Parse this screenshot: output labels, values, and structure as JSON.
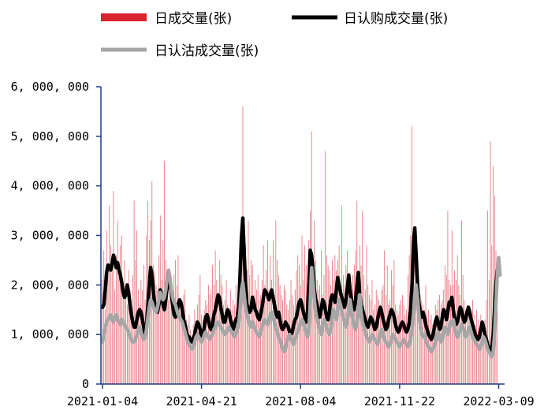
{
  "chart_data": {
    "type": "bar+line",
    "title": "",
    "xlabel": "",
    "ylabel": "",
    "ylim": [
      0,
      6000000
    ],
    "grid": false,
    "legend_placement": "top",
    "ytick_labels": [
      "0",
      "1, 000, 000",
      "2, 000, 000",
      "3, 000, 000",
      "4, 000, 000",
      "5, 000, 000",
      "6, 000, 000"
    ],
    "ytick_values": [
      0,
      1000000,
      2000000,
      3000000,
      4000000,
      5000000,
      6000000
    ],
    "xtick_labels": [
      "2021-01-04",
      "2021-04-21",
      "2021-08-04",
      "2021-11-22",
      "2022-03-09"
    ],
    "xtick_index": [
      0,
      72,
      144,
      216,
      288
    ],
    "x_start": "2021-01-04",
    "x_end": "2022-03-09",
    "num_days": 291,
    "bar_series": {
      "name": "日成交量(张)",
      "color": "#d9232e",
      "values": [
        2100000,
        2700000,
        1500000,
        3100000,
        2300000,
        3600000,
        2800000,
        2400000,
        3900000,
        1900000,
        2600000,
        3300000,
        2200000,
        2800000,
        3000000,
        1800000,
        2500000,
        2000000,
        1600000,
        2300000,
        1900000,
        1700000,
        2200000,
        3700000,
        2500000,
        3100000,
        1900000,
        1600000,
        2100000,
        1900000,
        2400000,
        1700000,
        3000000,
        3700000,
        2900000,
        3300000,
        4100000,
        2400000,
        2300000,
        2000000,
        1900000,
        2600000,
        3400000,
        2100000,
        2900000,
        4500000,
        2500000,
        1800000,
        1700000,
        2100000,
        2000000,
        1600000,
        2200000,
        2500000,
        2000000,
        2600000,
        1700000,
        1600000,
        1500000,
        1800000,
        1900000,
        1300000,
        1200000,
        1400000,
        1100000,
        1000000,
        1200000,
        1500000,
        1300000,
        1600000,
        1800000,
        2200000,
        1400000,
        1300000,
        1500000,
        1700000,
        1600000,
        2000000,
        1800000,
        1900000,
        2400000,
        2000000,
        2700000,
        2100000,
        1800000,
        2500000,
        2200000,
        2000000,
        1600000,
        1700000,
        2100000,
        1600000,
        1500000,
        1900000,
        1500000,
        1700000,
        1600000,
        2000000,
        1500000,
        1400000,
        2900000,
        2200000,
        5600000,
        2600000,
        2800000,
        2300000,
        3300000,
        2200000,
        2500000,
        2400000,
        1800000,
        2100000,
        1900000,
        2200000,
        1700000,
        1800000,
        2100000,
        2800000,
        2000000,
        2300000,
        2900000,
        1900000,
        2600000,
        2100000,
        2900000,
        1800000,
        3300000,
        2500000,
        2200000,
        2000000,
        1800000,
        1700000,
        2000000,
        1900000,
        1600000,
        1500000,
        1700000,
        2100000,
        1800000,
        1600000,
        1900000,
        2300000,
        2600000,
        2400000,
        2000000,
        3000000,
        2100000,
        2800000,
        2400000,
        1700000,
        2900000,
        3500000,
        5100000,
        2300000,
        3300000,
        2500000,
        2100000,
        1900000,
        2000000,
        2700000,
        1800000,
        2200000,
        4700000,
        2600000,
        2400000,
        2300000,
        2000000,
        2500000,
        2100000,
        2600000,
        2300000,
        2500000,
        2800000,
        1900000,
        3600000,
        2200000,
        2000000,
        2400000,
        2700000,
        1900000,
        2000000,
        1900000,
        2200000,
        2400000,
        2700000,
        3700000,
        2100000,
        2800000,
        2400000,
        3500000,
        2200000,
        1900000,
        2800000,
        2000000,
        1800000,
        1700000,
        2100000,
        1500000,
        1600000,
        1900000,
        1800000,
        1700000,
        1600000,
        1900000,
        2000000,
        2700000,
        1800000,
        2400000,
        1600000,
        1700000,
        2300000,
        2000000,
        2500000,
        1600000,
        1500000,
        1400000,
        1600000,
        1700000,
        1800000,
        1600000,
        1400000,
        1500000,
        2200000,
        2600000,
        3000000,
        5200000,
        3100000,
        2800000,
        2000000,
        1900000,
        2100000,
        1800000,
        1700000,
        1600000,
        1500000,
        2000000,
        1400000,
        1500000,
        1300000,
        1400000,
        1200000,
        1300000,
        1600000,
        1500000,
        1700000,
        1800000,
        1600000,
        1700000,
        1900000,
        2400000,
        2200000,
        3500000,
        2100000,
        2000000,
        3100000,
        2000000,
        2300000,
        2100000,
        2600000,
        2000000,
        1800000,
        3300000,
        2200000,
        1700000,
        1500000,
        1600000,
        1400000,
        1500000,
        1300000,
        1700000,
        1400000,
        1200000,
        1500000,
        1300000,
        1100000,
        1400000,
        1000000,
        1200000,
        1300000,
        1700000,
        3500000,
        2100000,
        4900000,
        2800000,
        4400000,
        3800000,
        2700000,
        2000000
      ]
    },
    "line_series": [
      {
        "name": "日认购成交量(张)",
        "color": "#000000",
        "values": [
          1550000,
          1600000,
          1900000,
          2250000,
          2400000,
          2350000,
          2300000,
          2450000,
          2600000,
          2500000,
          2350000,
          2450000,
          2300000,
          2200000,
          2050000,
          1850000,
          1750000,
          1800000,
          2000000,
          1850000,
          1600000,
          1400000,
          1250000,
          1150000,
          1150000,
          1300000,
          1450000,
          1500000,
          1450000,
          1300000,
          1150000,
          1000000,
          1150000,
          1600000,
          2000000,
          2350000,
          2200000,
          1850000,
          1600000,
          1500000,
          1450000,
          1600000,
          1900000,
          1800000,
          1600000,
          1500000,
          1700000,
          1950000,
          2100000,
          2050000,
          1850000,
          1600000,
          1400000,
          1350000,
          1450000,
          1600000,
          1700000,
          1650000,
          1500000,
          1300000,
          1200000,
          1050000,
          950000,
          950000,
          900000,
          850000,
          900000,
          1000000,
          1150000,
          1250000,
          1200000,
          1100000,
          950000,
          1000000,
          1150000,
          1350000,
          1400000,
          1300000,
          1150000,
          1100000,
          1200000,
          1400000,
          1500000,
          1650000,
          1800000,
          1750000,
          1550000,
          1400000,
          1250000,
          1250000,
          1400000,
          1500000,
          1450000,
          1300000,
          1200000,
          1100000,
          1200000,
          1300000,
          1350000,
          1550000,
          2200000,
          2950000,
          3350000,
          2650000,
          2000000,
          1600000,
          1550000,
          1450000,
          1500000,
          1750000,
          1650000,
          1500000,
          1450000,
          1350000,
          1300000,
          1400000,
          1550000,
          1750000,
          1900000,
          1850000,
          1800000,
          1700000,
          1800000,
          1900000,
          1750000,
          1600000,
          1450000,
          1350000,
          1450000,
          1300000,
          1150000,
          1100000,
          1150000,
          1250000,
          1200000,
          1150000,
          1050000,
          1000000,
          1050000,
          1200000,
          1300000,
          1350000,
          1500000,
          1650000,
          1700000,
          1600000,
          1450000,
          1350000,
          1250000,
          1450000,
          2000000,
          2700000,
          2600000,
          2300000,
          1900000,
          1700000,
          1600000,
          1450000,
          1350000,
          1500000,
          1700000,
          1650000,
          1500000,
          1350000,
          1300000,
          1450000,
          1700000,
          1800000,
          1750000,
          1650000,
          1900000,
          2150000,
          2000000,
          1850000,
          1750000,
          1650000,
          1550000,
          1700000,
          1950000,
          2200000,
          1900000,
          1700000,
          1550000,
          1500000,
          1700000,
          2000000,
          2250000,
          1800000,
          1600000,
          1500000,
          1400000,
          1300000,
          1200000,
          1150000,
          1250000,
          1350000,
          1300000,
          1200000,
          1100000,
          1150000,
          1300000,
          1450000,
          1550000,
          1450000,
          1300000,
          1200000,
          1100000,
          1150000,
          1300000,
          1400000,
          1500000,
          1450000,
          1350000,
          1200000,
          1100000,
          1050000,
          1100000,
          1200000,
          1250000,
          1200000,
          1100000,
          1050000,
          1100000,
          1250000,
          1500000,
          2000000,
          2800000,
          3150000,
          2600000,
          2000000,
          1650000,
          1450000,
          1350000,
          1450000,
          1350000,
          1200000,
          1100000,
          1000000,
          950000,
          900000,
          950000,
          1100000,
          1250000,
          1350000,
          1250000,
          1100000,
          1150000,
          1350000,
          1500000,
          1450000,
          1300000,
          1450000,
          1650000,
          1600000,
          1750000,
          1500000,
          1300000,
          1200000,
          1250000,
          1400000,
          1550000,
          1500000,
          1350000,
          1250000,
          1300000,
          1450000,
          1550000,
          1450000,
          1300000,
          1200000,
          1100000,
          1000000,
          950000,
          900000,
          950000,
          1100000,
          1250000,
          1150000,
          1000000,
          900000,
          800000,
          700000,
          650000,
          700000,
          1000000,
          1500000,
          2000000,
          2300000,
          2250000
        ]
      },
      {
        "name": "日认沽成交量(张)",
        "color": "#a6a6a6",
        "values": [
          850000,
          1000000,
          1150000,
          1250000,
          1300000,
          1350000,
          1400000,
          1300000,
          1250000,
          1350000,
          1400000,
          1300000,
          1250000,
          1200000,
          1300000,
          1250000,
          1200000,
          1150000,
          1100000,
          1050000,
          950000,
          900000,
          850000,
          850000,
          900000,
          1000000,
          1100000,
          1150000,
          1050000,
          950000,
          900000,
          950000,
          1100000,
          1350000,
          1550000,
          1700000,
          1650000,
          1550000,
          1500000,
          1450000,
          1550000,
          1700000,
          1850000,
          1800000,
          1700000,
          1750000,
          1900000,
          2150000,
          2300000,
          2150000,
          1900000,
          1750000,
          1650000,
          1600000,
          1500000,
          1400000,
          1350000,
          1300000,
          1250000,
          1150000,
          1050000,
          950000,
          850000,
          800000,
          750000,
          700000,
          750000,
          850000,
          950000,
          1000000,
          950000,
          900000,
          850000,
          900000,
          1000000,
          1050000,
          1000000,
          950000,
          900000,
          950000,
          1000000,
          1100000,
          1150000,
          1200000,
          1250000,
          1200000,
          1150000,
          1100000,
          1050000,
          1000000,
          1050000,
          1100000,
          1150000,
          1100000,
          1050000,
          1000000,
          950000,
          1000000,
          1100000,
          1200000,
          1500000,
          1900000,
          2050000,
          1800000,
          1550000,
          1400000,
          1300000,
          1200000,
          1150000,
          1250000,
          1200000,
          1100000,
          1050000,
          1000000,
          950000,
          1050000,
          1150000,
          1250000,
          1300000,
          1250000,
          1200000,
          1250000,
          1400000,
          1450000,
          1350000,
          1250000,
          1150000,
          1050000,
          950000,
          900000,
          800000,
          700000,
          650000,
          700000,
          850000,
          950000,
          1000000,
          950000,
          850000,
          800000,
          900000,
          1000000,
          1050000,
          1150000,
          1250000,
          1300000,
          1250000,
          1150000,
          1050000,
          950000,
          1100000,
          1600000,
          2350000,
          2050000,
          1700000,
          1450000,
          1300000,
          1200000,
          1100000,
          1000000,
          1150000,
          1300000,
          1250000,
          1150000,
          1050000,
          1000000,
          1100000,
          1350000,
          1500000,
          1400000,
          1300000,
          1500000,
          1700000,
          1600000,
          1450000,
          1350000,
          1250000,
          1150000,
          1300000,
          1500000,
          1700000,
          1500000,
          1300000,
          1150000,
          1100000,
          1250000,
          1500000,
          1800000,
          1450000,
          1250000,
          1150000,
          1050000,
          950000,
          900000,
          850000,
          900000,
          1000000,
          950000,
          900000,
          850000,
          800000,
          900000,
          1050000,
          1100000,
          1000000,
          900000,
          850000,
          800000,
          750000,
          800000,
          900000,
          1000000,
          950000,
          900000,
          850000,
          800000,
          750000,
          800000,
          850000,
          900000,
          850000,
          800000,
          750000,
          800000,
          900000,
          1100000,
          1400000,
          1800000,
          2000000,
          1750000,
          1400000,
          1200000,
          1050000,
          950000,
          1000000,
          900000,
          800000,
          750000,
          700000,
          650000,
          700000,
          750000,
          850000,
          950000,
          1050000,
          950000,
          850000,
          900000,
          1050000,
          1150000,
          1100000,
          1000000,
          1100000,
          1250000,
          1200000,
          1300000,
          1150000,
          1000000,
          950000,
          1000000,
          1100000,
          1200000,
          1150000,
          1050000,
          950000,
          1000000,
          1100000,
          1150000,
          1050000,
          950000,
          900000,
          850000,
          800000,
          750000,
          700000,
          750000,
          850000,
          950000,
          900000,
          800000,
          700000,
          650000,
          600000,
          550000,
          650000,
          1000000,
          1600000,
          2200000,
          2550000,
          2200000
        ]
      }
    ]
  }
}
